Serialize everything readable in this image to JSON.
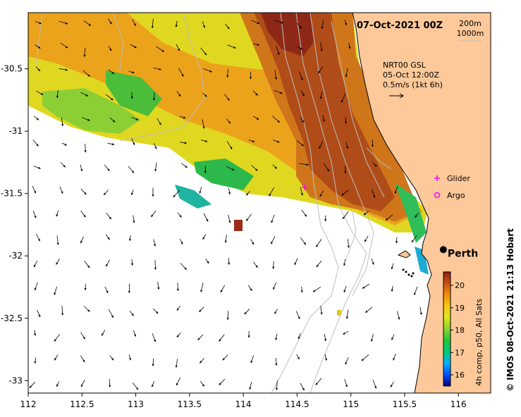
{
  "title": "07-Oct-2021 00Z",
  "contour_legend": [
    "200m",
    "1000m"
  ],
  "current_info": [
    "NRT00 GSL",
    "05-Oct 12:00Z",
    "0.5m/s (1kt 6h)"
  ],
  "legend_items": [
    {
      "label": "Glider",
      "color": "#ff00ff",
      "icon": "plus-marker-icon"
    },
    {
      "label": "Argo",
      "color": "#ff00ff",
      "icon": "circle-marker-icon"
    }
  ],
  "city": {
    "label": "Perth",
    "lon": 115.86,
    "lat": -31.95
  },
  "glider_position": {
    "lon": 114.57,
    "lat": -31.45
  },
  "x_ticks": [
    "112",
    "112.5",
    "113",
    "113.5",
    "114",
    "114.5",
    "115",
    "115.5",
    "116"
  ],
  "y_ticks": [
    "-30.5",
    "-31",
    "-31.5",
    "-32",
    "-32.5",
    "-33"
  ],
  "lon_range": [
    112,
    116.3
  ],
  "lat_range": [
    -33.1,
    -30.05
  ],
  "colorbar": {
    "label": "4h comp, p50, All Sats",
    "ticks": [
      "16",
      "17",
      "18",
      "19",
      "20"
    ],
    "range": [
      15.5,
      20.6
    ],
    "colors": [
      "#000080",
      "#0050ff",
      "#00b4ff",
      "#00c878",
      "#1ec83c",
      "#8cd232",
      "#dce61e",
      "#f5c814",
      "#f08c0a",
      "#c85014",
      "#8c1e14"
    ]
  },
  "credit": "© IMOS 08-Oct-2021 21:13 Hobart",
  "colors": {
    "land": "#fdc99a",
    "frame": "#000000",
    "arrow": "#000000"
  }
}
